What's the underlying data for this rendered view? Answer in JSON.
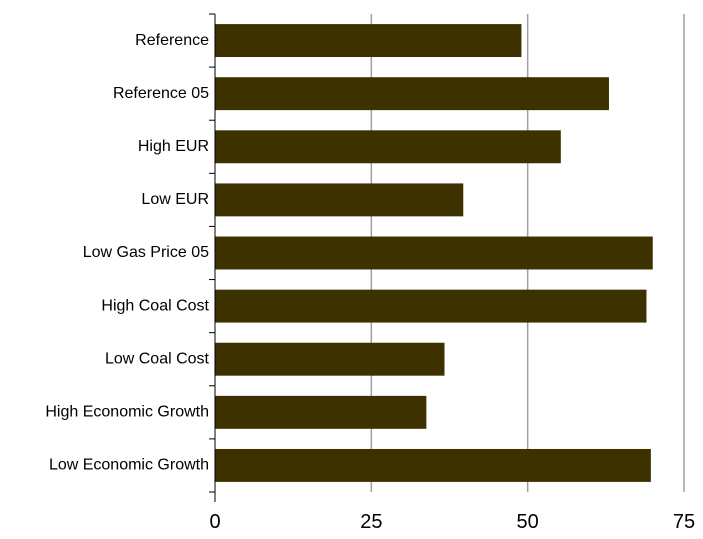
{
  "chart_data": {
    "type": "bar",
    "orientation": "horizontal",
    "title": "",
    "xlabel": "",
    "ylabel": "",
    "categories": [
      "Reference",
      "Reference 05",
      "High EUR",
      "Low EUR",
      "Low Gas Price 05",
      "High Coal Cost",
      "Low Coal Cost",
      "High Economic Growth",
      "Low Economic Growth"
    ],
    "values": [
      49,
      63,
      55.3,
      39.7,
      70,
      69,
      36.7,
      33.8,
      69.7
    ],
    "xlim": [
      0,
      75
    ],
    "xticks": [
      "0",
      "25",
      "50",
      "75"
    ],
    "grid": "vertical",
    "bar_color": "#3d3100",
    "legend": "none"
  }
}
